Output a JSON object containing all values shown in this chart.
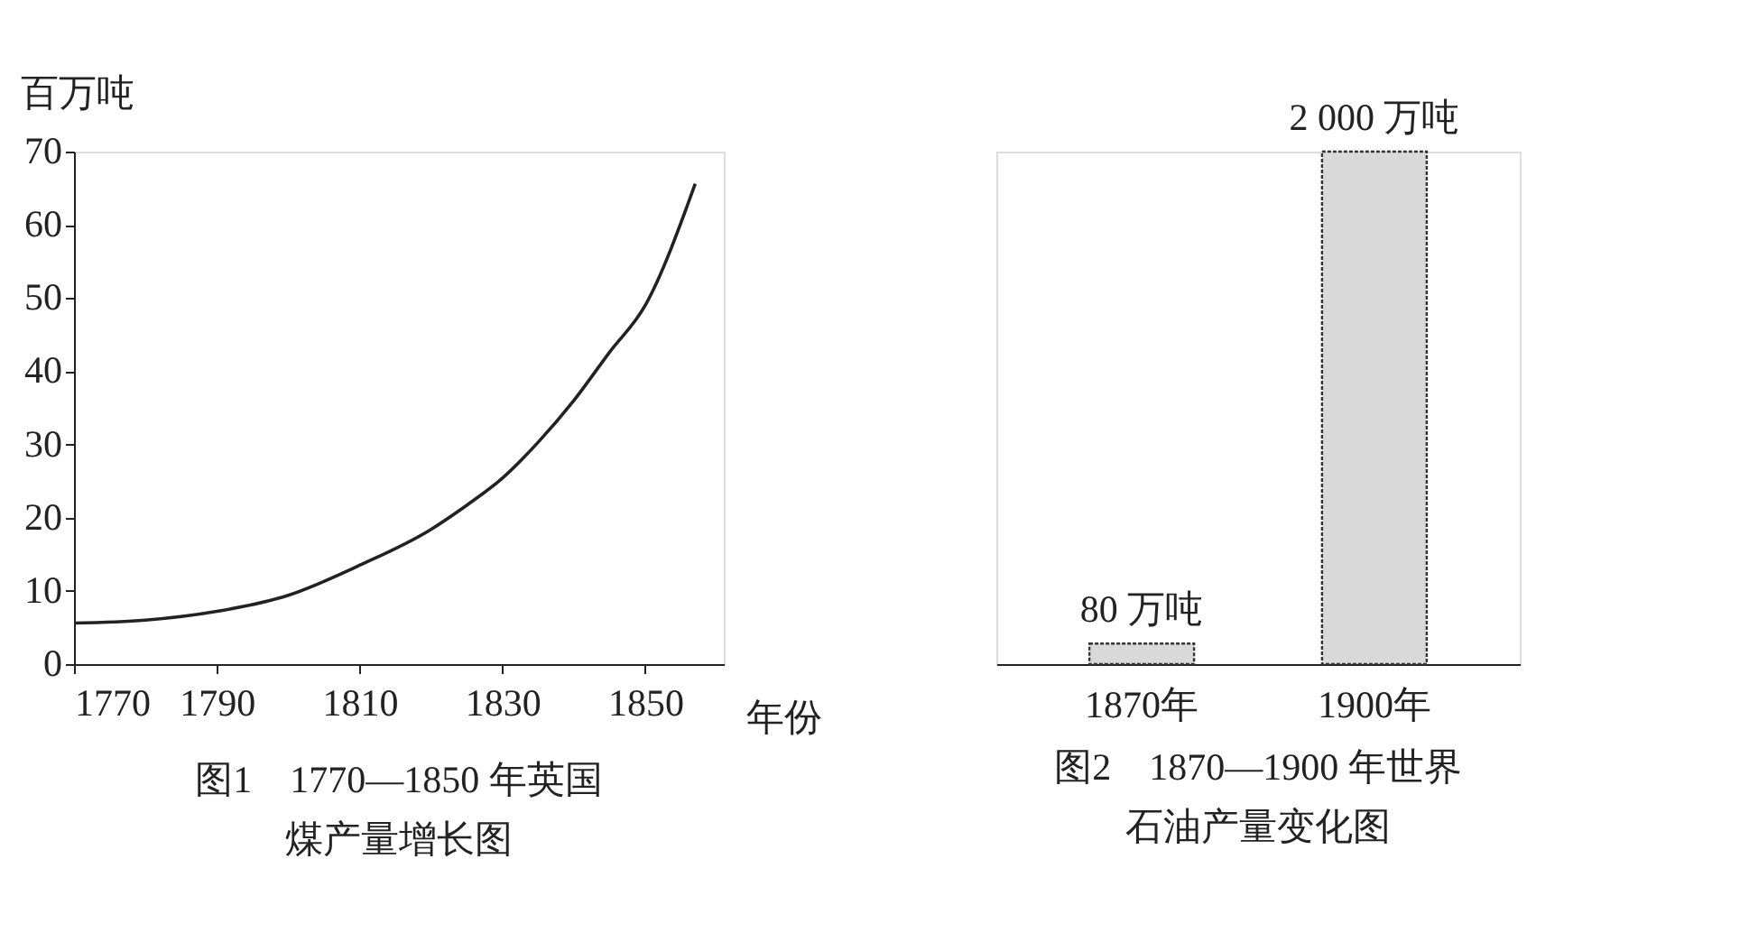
{
  "chart_data": [
    {
      "type": "line",
      "title": "图1　1770—1850 年英国",
      "subtitle": "煤产量增长图",
      "xlabel": "年份",
      "ylabel": "百万吨",
      "x": [
        1770,
        1780,
        1790,
        1800,
        1810,
        1820,
        1825,
        1830,
        1835,
        1840,
        1845,
        1850,
        1857
      ],
      "series": [
        {
          "color": "#222222",
          "values": [
            5.6,
            6,
            7.2,
            9.4,
            13.5,
            18.4,
            21.7,
            25.4,
            30.3,
            36,
            42.6,
            49,
            65.6
          ]
        }
      ],
      "xlim": [
        1770,
        1861
      ],
      "xticks": [
        1770,
        1790,
        1810,
        1830,
        1850
      ],
      "ylim": [
        0,
        70
      ],
      "yticks": [
        0,
        10,
        20,
        30,
        40,
        50,
        60,
        70
      ],
      "grid": false,
      "marker": "none"
    },
    {
      "type": "bar",
      "title": "图2　1870—1900 年世界",
      "subtitle": "石油产量变化图",
      "categories": [
        "1870年",
        "1900年"
      ],
      "values": [
        80,
        2000
      ],
      "value_labels": [
        "80 万吨",
        "2 000 万吨"
      ],
      "color": "#d9d9d9",
      "tick_labels": "x",
      "grid": false
    }
  ]
}
